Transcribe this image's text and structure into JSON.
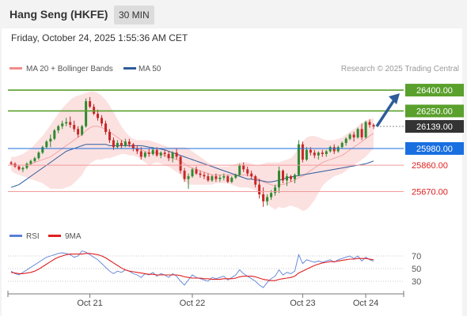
{
  "header": {
    "title": "Hang Seng (HKFE)",
    "interval": "30 MIN"
  },
  "timestamp": "Friday, October 24, 2025 1:55:36 AM CET",
  "credit": "Research © 2025 Trading Central",
  "legend": [
    {
      "label": "MA 20 + Bollinger Bands",
      "color": "#f28b8b"
    },
    {
      "label": "MA 50",
      "color": "#2e5c9a"
    }
  ],
  "rsi_legend": [
    {
      "label": "RSI",
      "color": "#5b7fd6"
    },
    {
      "label": "9MA",
      "color": "#e02020"
    }
  ],
  "chart_data": [
    {
      "type": "candlestick",
      "title": "",
      "ylim": [
        25400,
        26480
      ],
      "x_ticks": [
        "Oct 21",
        "Oct 22",
        "Oct 23",
        "Oct 24"
      ],
      "levels": [
        {
          "value": 26400,
          "label": "26400.00",
          "kind": "resistance",
          "color": "#5aa02c"
        },
        {
          "value": 26250,
          "label": "26250.00",
          "kind": "resistance",
          "color": "#5aa02c"
        },
        {
          "value": 26139,
          "label": "26139.00",
          "kind": "last",
          "color": "#333333"
        },
        {
          "value": 25980,
          "label": "25980.00",
          "kind": "pivot",
          "color": "#1a6fe0"
        },
        {
          "value": 25860,
          "label": "25860.00",
          "kind": "support",
          "color": "#e02020"
        },
        {
          "value": 25670,
          "label": "25670.00",
          "kind": "support",
          "color": "#e02020"
        }
      ],
      "candles": [
        [
          25880,
          25890,
          25860,
          25870
        ],
        [
          25870,
          25880,
          25840,
          25850
        ],
        [
          25850,
          25860,
          25820,
          25830
        ],
        [
          25830,
          25850,
          25810,
          25840
        ],
        [
          25840,
          25880,
          25830,
          25870
        ],
        [
          25870,
          25900,
          25860,
          25890
        ],
        [
          25890,
          25920,
          25880,
          25910
        ],
        [
          25910,
          25960,
          25900,
          25950
        ],
        [
          25950,
          26000,
          25940,
          25990
        ],
        [
          25990,
          26040,
          25980,
          26030
        ],
        [
          26030,
          26080,
          25990,
          26050
        ],
        [
          26050,
          26120,
          26040,
          26110
        ],
        [
          26110,
          26150,
          26090,
          26140
        ],
        [
          26140,
          26180,
          26120,
          26160
        ],
        [
          26160,
          26200,
          26140,
          26170
        ],
        [
          26170,
          26210,
          26130,
          26150
        ],
        [
          26150,
          26180,
          26100,
          26120
        ],
        [
          26120,
          26140,
          26060,
          26080
        ],
        [
          26080,
          26150,
          26070,
          26140
        ],
        [
          26140,
          26340,
          26130,
          26320
        ],
        [
          26320,
          26350,
          26270,
          26280
        ],
        [
          26280,
          26300,
          26220,
          26230
        ],
        [
          26230,
          26260,
          26180,
          26200
        ],
        [
          26200,
          26220,
          26140,
          26160
        ],
        [
          26160,
          26180,
          26080,
          26100
        ],
        [
          26100,
          26120,
          26020,
          26040
        ],
        [
          26040,
          26060,
          25970,
          25990
        ],
        [
          25990,
          26040,
          25980,
          26020
        ],
        [
          26020,
          26040,
          25980,
          26000
        ],
        [
          26000,
          26050,
          25990,
          26030
        ],
        [
          26030,
          26050,
          25990,
          26010
        ],
        [
          26010,
          26020,
          25960,
          25980
        ],
        [
          25980,
          26000,
          25940,
          25960
        ],
        [
          25960,
          25990,
          25900,
          25920
        ],
        [
          25920,
          25960,
          25910,
          25950
        ],
        [
          25950,
          25980,
          25920,
          25940
        ],
        [
          25940,
          25990,
          25930,
          25970
        ],
        [
          25970,
          25990,
          25920,
          25930
        ],
        [
          25930,
          25960,
          25910,
          25950
        ],
        [
          25950,
          25970,
          25920,
          25940
        ],
        [
          25940,
          25960,
          25890,
          25910
        ],
        [
          25910,
          25960,
          25880,
          25950
        ],
        [
          25950,
          25980,
          25900,
          25920
        ],
        [
          25920,
          25930,
          25800,
          25820
        ],
        [
          25820,
          25840,
          25740,
          25760
        ],
        [
          25760,
          25800,
          25690,
          25780
        ],
        [
          25780,
          25840,
          25770,
          25830
        ],
        [
          25830,
          25850,
          25790,
          25800
        ],
        [
          25800,
          25820,
          25770,
          25790
        ],
        [
          25790,
          25810,
          25760,
          25780
        ],
        [
          25780,
          25800,
          25740,
          25750
        ],
        [
          25750,
          25790,
          25740,
          25780
        ],
        [
          25780,
          25800,
          25740,
          25760
        ],
        [
          25760,
          25790,
          25740,
          25770
        ],
        [
          25770,
          25800,
          25750,
          25780
        ],
        [
          25780,
          25790,
          25730,
          25740
        ],
        [
          25740,
          25780,
          25730,
          25770
        ],
        [
          25770,
          25800,
          25760,
          25790
        ],
        [
          25790,
          25870,
          25780,
          25860
        ],
        [
          25860,
          25880,
          25810,
          25830
        ],
        [
          25830,
          25850,
          25780,
          25800
        ],
        [
          25800,
          25820,
          25760,
          25780
        ],
        [
          25780,
          25790,
          25700,
          25720
        ],
        [
          25720,
          25760,
          25620,
          25650
        ],
        [
          25650,
          25700,
          25560,
          25600
        ],
        [
          25600,
          25650,
          25570,
          25630
        ],
        [
          25630,
          25680,
          25610,
          25660
        ],
        [
          25660,
          25720,
          25640,
          25700
        ],
        [
          25700,
          25850,
          25660,
          25820
        ],
        [
          25820,
          25830,
          25730,
          25750
        ],
        [
          25750,
          25800,
          25710,
          25780
        ],
        [
          25780,
          25790,
          25740,
          25760
        ],
        [
          25760,
          25800,
          25730,
          25790
        ],
        [
          25790,
          26040,
          25780,
          26010
        ],
        [
          26010,
          26030,
          25880,
          25900
        ],
        [
          25900,
          25990,
          25890,
          25970
        ],
        [
          25970,
          25990,
          25930,
          25950
        ],
        [
          25950,
          25970,
          25910,
          25930
        ],
        [
          25930,
          25960,
          25900,
          25950
        ],
        [
          25950,
          25970,
          25920,
          25940
        ],
        [
          25940,
          25970,
          25920,
          25960
        ],
        [
          25960,
          26000,
          25950,
          25990
        ],
        [
          25990,
          26010,
          25940,
          25960
        ],
        [
          25960,
          26000,
          25950,
          25990
        ],
        [
          25990,
          26030,
          25980,
          26020
        ],
        [
          26020,
          26060,
          26000,
          26050
        ],
        [
          26050,
          26090,
          26040,
          26080
        ],
        [
          26080,
          26100,
          26030,
          26060
        ],
        [
          26060,
          26130,
          26050,
          26120
        ],
        [
          26120,
          26160,
          26040,
          26060
        ],
        [
          26060,
          26180,
          26050,
          26170
        ],
        [
          26170,
          26190,
          26130,
          26150
        ],
        [
          26150,
          26160,
          26120,
          26139
        ]
      ],
      "ma20": [
        25870,
        25860,
        25860,
        25860,
        25860,
        25870,
        25880,
        25890,
        25900,
        25910,
        25920,
        25940,
        25960,
        25980,
        26000,
        26020,
        26040,
        26060,
        26080,
        26110,
        26130,
        26140,
        26140,
        26130,
        26120,
        26100,
        26080,
        26060,
        26040,
        26020,
        26000,
        25990,
        25980,
        25970,
        25960,
        25950,
        25950,
        25950,
        25940,
        25930,
        25920,
        25910,
        25900,
        25890,
        25870,
        25850,
        25840,
        25830,
        25820,
        25810,
        25800,
        25790,
        25790,
        25790,
        25790,
        25790,
        25790,
        25790,
        25790,
        25790,
        25790,
        25780,
        25770,
        25760,
        25740,
        25730,
        25720,
        25710,
        25720,
        25720,
        25730,
        25740,
        25750,
        25770,
        25780,
        25800,
        25820,
        25840,
        25860,
        25880,
        25890,
        25900,
        25910,
        25920,
        25930,
        25950,
        25970,
        25990,
        26010,
        26030,
        26050,
        26070,
        26090
      ],
      "ma50": [
        25700,
        25710,
        25720,
        25740,
        25760,
        25780,
        25800,
        25820,
        25840,
        25860,
        25880,
        25900,
        25920,
        25940,
        25960,
        25970,
        25980,
        25990,
        26000,
        26010,
        26010,
        26010,
        26010,
        26010,
        26010,
        26000,
        26000,
        26000,
        26000,
        26000,
        26000,
        26000,
        26000,
        26000,
        25995,
        25990,
        25985,
        25980,
        25975,
        25970,
        25960,
        25950,
        25940,
        25930,
        25920,
        25910,
        25900,
        25890,
        25880,
        25870,
        25860,
        25850,
        25840,
        25830,
        25820,
        25810,
        25800,
        25790,
        25780,
        25770,
        25760,
        25760,
        25755,
        25750,
        25745,
        25740,
        25740,
        25745,
        25750,
        25760,
        25770,
        25775,
        25780,
        25785,
        25790,
        25795,
        25800,
        25805,
        25810,
        25815,
        25820,
        25825,
        25830,
        25835,
        25840,
        25845,
        25850,
        25855,
        25860,
        25865,
        25870,
        25880,
        25890
      ],
      "bb_upper": [
        25920,
        25920,
        25930,
        25940,
        25960,
        25980,
        26010,
        26040,
        26070,
        26110,
        26150,
        26190,
        26230,
        26270,
        26300,
        26330,
        26350,
        26360,
        26370,
        26380,
        26390,
        26390,
        26380,
        26360,
        26330,
        26290,
        26240,
        26190,
        26140,
        26100,
        26070,
        26050,
        26040,
        26040,
        26040,
        26040,
        26030,
        26020,
        26010,
        26000,
        25990,
        25990,
        25990,
        25990,
        25990,
        25980,
        25960,
        25940,
        25920,
        25900,
        25880,
        25860,
        25850,
        25850,
        25850,
        25850,
        25860,
        25870,
        25880,
        25880,
        25880,
        25870,
        25860,
        25860,
        25870,
        25880,
        25880,
        25880,
        25880,
        25890,
        25900,
        25910,
        25940,
        25990,
        26030,
        26060,
        26070,
        26070,
        26060,
        26050,
        26040,
        26040,
        26040,
        26050,
        26060,
        26080,
        26100,
        26120,
        26140,
        26160,
        26180,
        26190,
        26200
      ],
      "bb_lower": [
        25820,
        25800,
        25790,
        25780,
        25770,
        25760,
        25750,
        25740,
        25730,
        25710,
        25690,
        25690,
        25690,
        25690,
        25700,
        25710,
        25730,
        25760,
        25790,
        25840,
        25870,
        25890,
        25900,
        25900,
        25910,
        25910,
        25920,
        25930,
        25940,
        25940,
        25930,
        25930,
        25920,
        25900,
        25880,
        25860,
        25870,
        25880,
        25870,
        25860,
        25850,
        25830,
        25810,
        25790,
        25750,
        25720,
        25720,
        25720,
        25720,
        25720,
        25720,
        25720,
        25730,
        25730,
        25730,
        25730,
        25720,
        25710,
        25700,
        25700,
        25700,
        25690,
        25680,
        25660,
        25610,
        25580,
        25560,
        25540,
        25560,
        25550,
        25560,
        25570,
        25560,
        25550,
        25530,
        25540,
        25570,
        25610,
        25660,
        25710,
        25740,
        25760,
        25780,
        25790,
        25800,
        25820,
        25840,
        25860,
        25880,
        25900,
        25920,
        25950,
        25980
      ],
      "forecast": {
        "from": 26139,
        "to": 26400
      }
    },
    {
      "type": "line",
      "title": "",
      "ylim": [
        15,
        85
      ],
      "y_ticks": [
        70,
        50,
        30
      ],
      "x_ticks": [
        "Oct 21",
        "Oct 22",
        "Oct 23",
        "Oct 24"
      ],
      "series": [
        {
          "name": "RSI",
          "values": [
            46,
            42,
            40,
            44,
            48,
            52,
            56,
            60,
            64,
            68,
            70,
            72,
            74,
            75,
            74,
            72,
            68,
            70,
            78,
            76,
            72,
            68,
            64,
            58,
            52,
            46,
            42,
            46,
            44,
            48,
            46,
            42,
            40,
            36,
            42,
            40,
            44,
            38,
            42,
            40,
            36,
            42,
            38,
            30,
            24,
            32,
            40,
            36,
            34,
            32,
            30,
            36,
            34,
            36,
            38,
            32,
            36,
            40,
            48,
            42,
            38,
            34,
            30,
            24,
            20,
            28,
            34,
            38,
            48,
            40,
            44,
            42,
            46,
            72,
            58,
            64,
            62,
            60,
            62,
            60,
            62,
            64,
            60,
            64,
            66,
            68,
            70,
            66,
            70,
            62,
            68,
            64,
            62
          ]
        },
        {
          "name": "9MA",
          "values": [
            44,
            43,
            42,
            42,
            43,
            44,
            46,
            49,
            53,
            57,
            61,
            65,
            68,
            70,
            72,
            73,
            73,
            73,
            73,
            74,
            74,
            73,
            72,
            70,
            67,
            63,
            59,
            55,
            51,
            48,
            46,
            45,
            44,
            43,
            42,
            41,
            41,
            40,
            40,
            40,
            40,
            40,
            40,
            39,
            37,
            36,
            35,
            35,
            35,
            34,
            34,
            33,
            33,
            33,
            34,
            34,
            34,
            35,
            37,
            38,
            38,
            38,
            37,
            35,
            33,
            32,
            31,
            31,
            33,
            34,
            35,
            36,
            38,
            43,
            46,
            49,
            52,
            55,
            57,
            59,
            60,
            61,
            61,
            62,
            63,
            64,
            65,
            65,
            66,
            66,
            66,
            65,
            64
          ]
        }
      ]
    }
  ]
}
